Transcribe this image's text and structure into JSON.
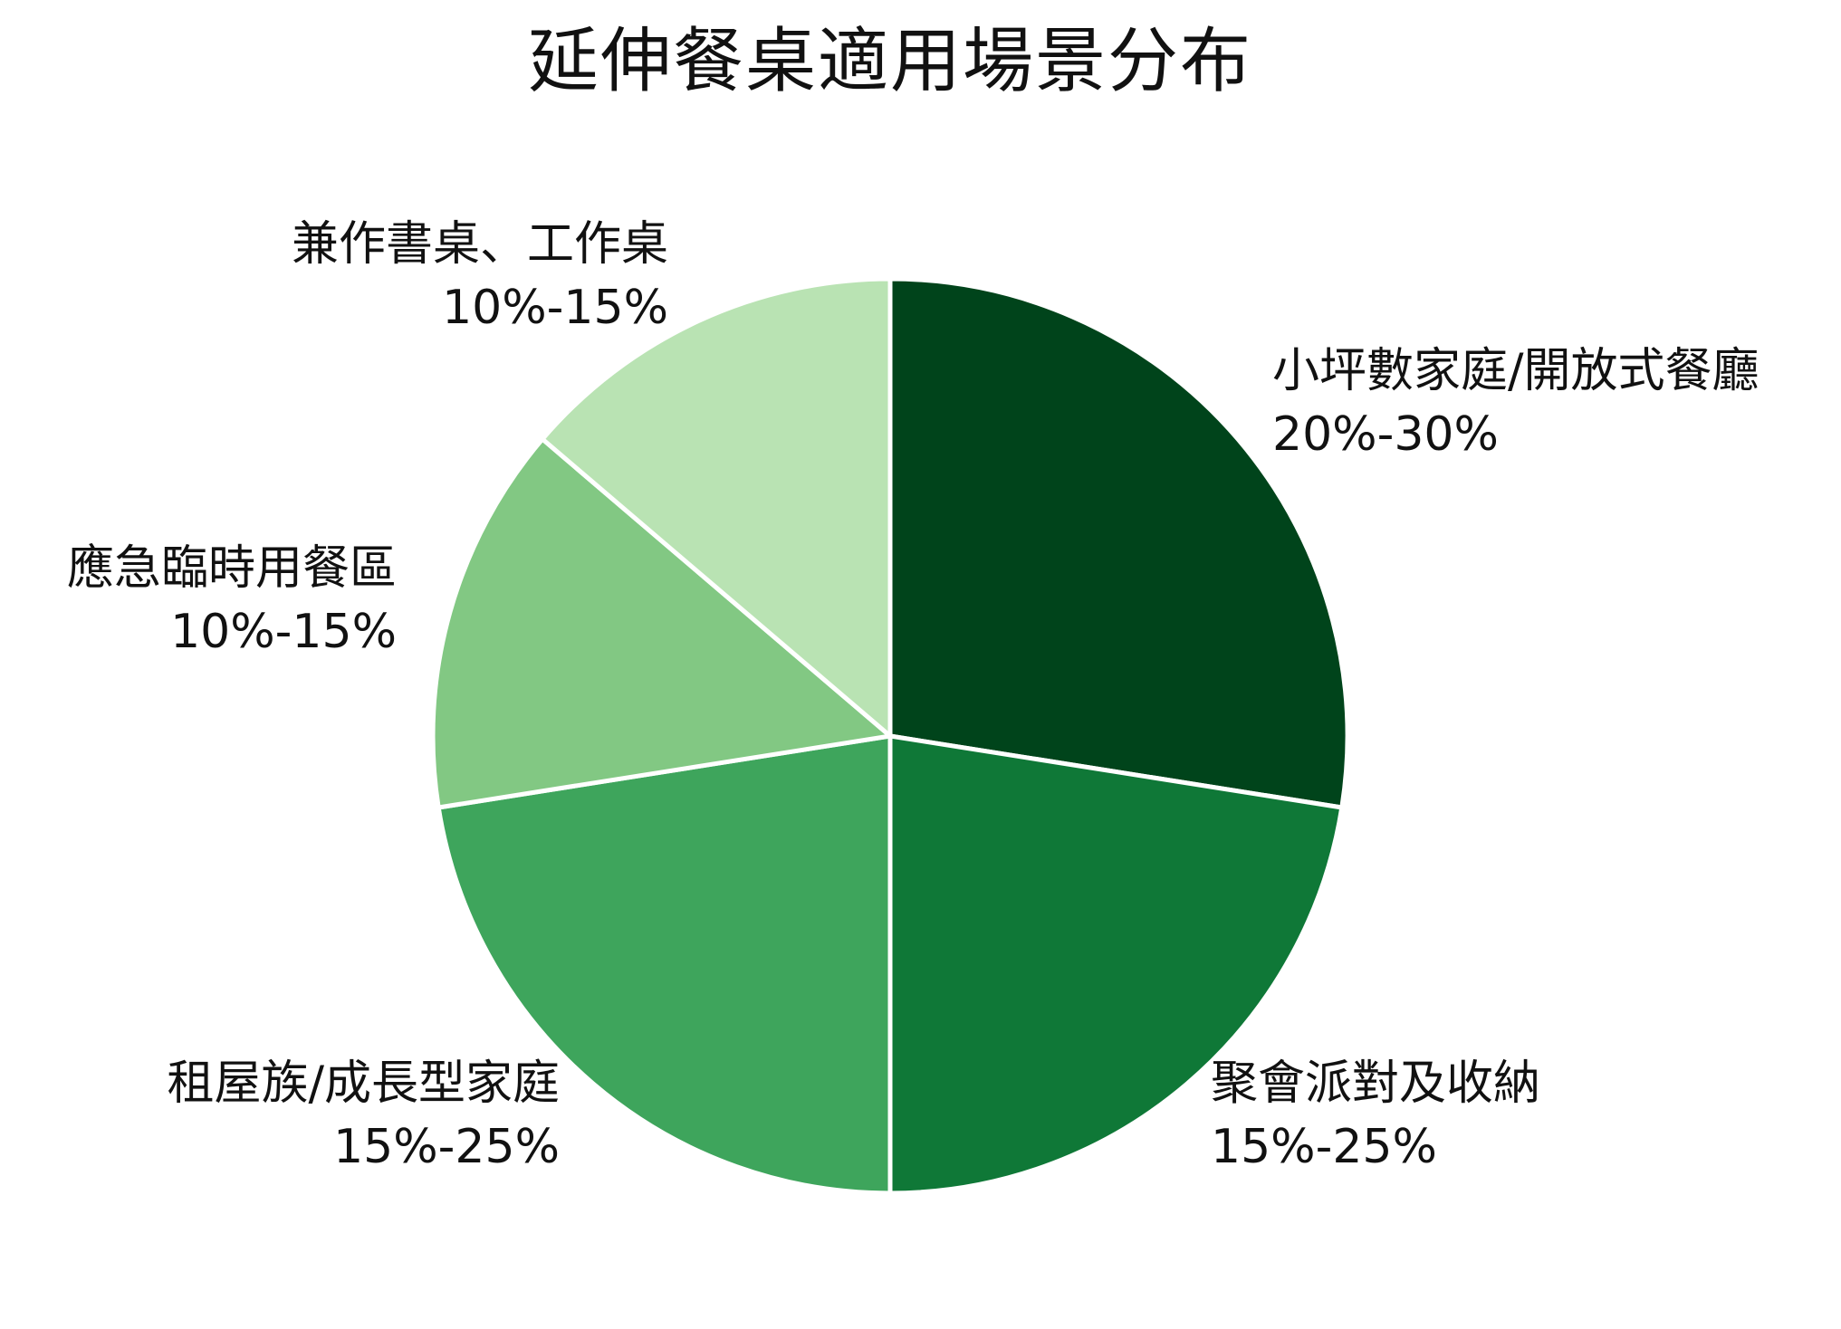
{
  "chart_data": {
    "type": "pie",
    "title": "延伸餐桌適用場景分布",
    "start_angle": "12 o'clock",
    "direction": "clockwise",
    "slices": [
      {
        "name": "小坪數家庭/開放式餐廳",
        "range_label": "20%-30%",
        "value": 27.5,
        "color": "#00441b"
      },
      {
        "name": "聚會派對及收納",
        "range_label": "15%-25%",
        "value": 22.5,
        "color": "#0f7837"
      },
      {
        "name": "租屋族/成長型家庭",
        "range_label": "15%-25%",
        "value": 22.5,
        "color": "#3ea55c"
      },
      {
        "name": "應急臨時用餐區",
        "range_label": "10%-15%",
        "value": 13.75,
        "color": "#82c883"
      },
      {
        "name": "兼作書桌、工作桌",
        "range_label": "10%-15%",
        "value": 13.75,
        "color": "#b9e3b3"
      }
    ],
    "slice_border_color": "#ffffff"
  }
}
